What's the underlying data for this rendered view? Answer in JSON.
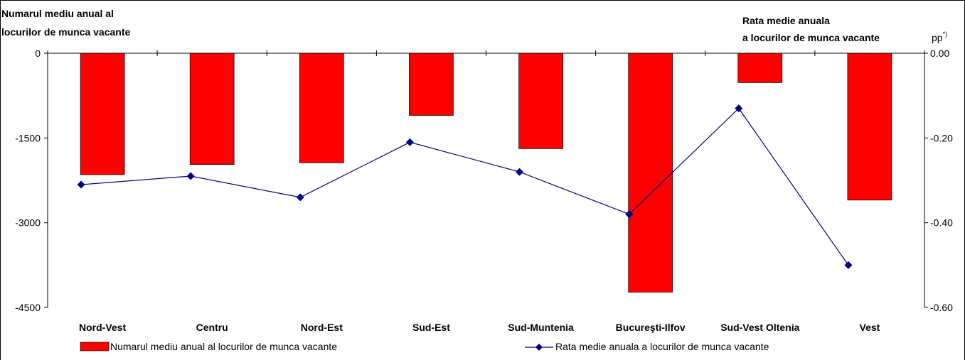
{
  "chart_data": {
    "type": "bar",
    "categories": [
      "Nord-Vest",
      "Centru",
      "Nord-Est",
      "Sud-Est",
      "Sud-Muntenia",
      "Bucureşti-Ilfov",
      "Sud-Vest Oltenia",
      "Vest"
    ],
    "series": [
      {
        "name": "Numarul mediu anual al locurilor de munca vacante",
        "type": "bar",
        "axis": "left",
        "color": "#ff0000",
        "values": [
          -2150,
          -1970,
          -1940,
          -1100,
          -1690,
          -4230,
          -520,
          -2600
        ]
      },
      {
        "name": "Rata medie anuala a locurilor de munca vacante",
        "type": "line",
        "axis": "right",
        "color": "#000080",
        "values": [
          -0.31,
          -0.29,
          -0.34,
          -0.21,
          -0.28,
          -0.38,
          -0.13,
          -0.5
        ]
      }
    ],
    "y_left": {
      "label_line1": "Numarul mediu anual al",
      "label_line2": "locurilor de munca vacante",
      "ylim": [
        -4500,
        0
      ],
      "ticks": [
        0,
        -1500,
        -3000,
        -4500
      ],
      "tick_labels": [
        "0",
        "-1500",
        "-3000",
        "-4500"
      ]
    },
    "y_right": {
      "label_line1": "Rata medie anuala",
      "label_line2": "a locurilor de munca vacante",
      "unit": "pp",
      "unit_sup": "*)",
      "ylim": [
        -0.6,
        0
      ],
      "ticks": [
        0,
        -0.2,
        -0.4,
        -0.6
      ],
      "tick_labels": [
        "0.00",
        "-0.20",
        "-0.40",
        "-0.60"
      ]
    },
    "grid": false,
    "legend_position": "bottom"
  }
}
